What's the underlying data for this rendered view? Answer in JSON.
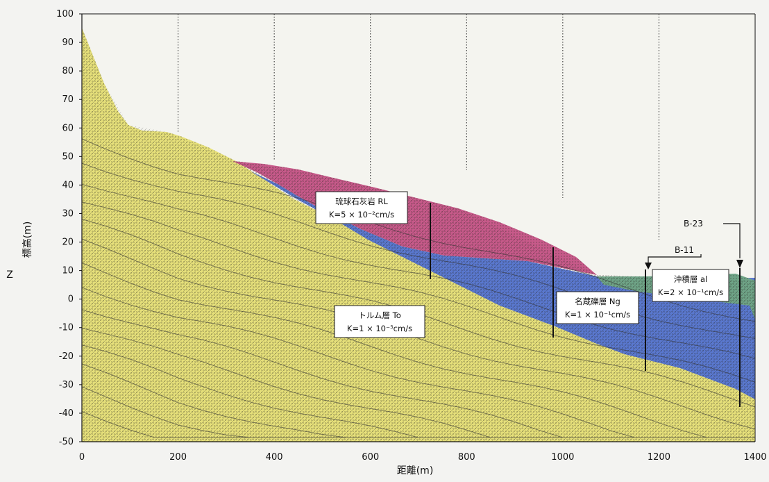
{
  "chart": {
    "y_axis_title": "標高(m)",
    "side_label": "Z",
    "x_axis_title": "距離(m)",
    "x_ticks": [
      "0",
      "200",
      "400",
      "600",
      "800",
      "1000",
      "1200",
      "1400"
    ],
    "y_ticks": [
      "100",
      "90",
      "80",
      "70",
      "60",
      "50",
      "40",
      "30",
      "20",
      "10",
      "0",
      "-10",
      "-20",
      "-30",
      "-40",
      "-50"
    ],
    "xlim": [
      0,
      1400
    ],
    "ylim": [
      -50,
      100
    ]
  },
  "layers": {
    "to": {
      "name": "トルム層 To",
      "k": "K=1 × 10⁻⁵cm/s",
      "color": "#e6e07a"
    },
    "rl": {
      "name": "琉球石灰岩 RL",
      "k": "K=5 × 10⁻²cm/s",
      "color": "#c75a8a"
    },
    "ng": {
      "name": "名蔵礫層 Ng",
      "k": "K=1 × 10⁻¹cm/s",
      "color": "#5a78cf"
    },
    "al": {
      "name": "沖積層 al",
      "k": "K=2 × 10⁻¹cm/s",
      "color": "#6fa487"
    }
  },
  "boreholes": {
    "b11": "B-11",
    "b23": "B-23"
  }
}
